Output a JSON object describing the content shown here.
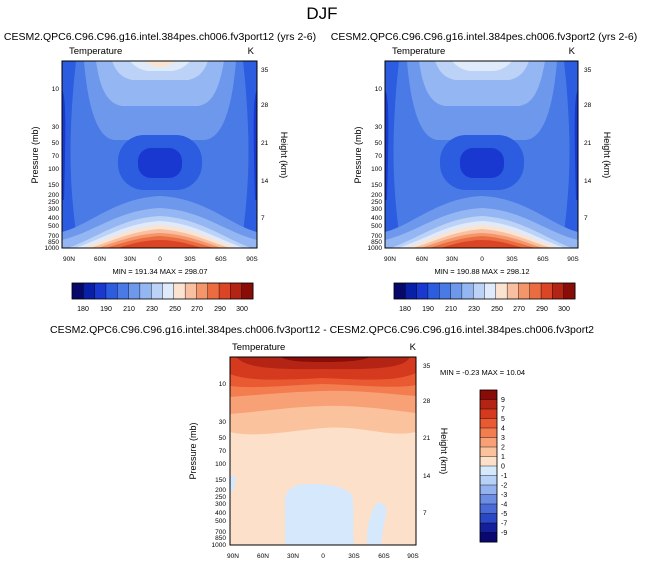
{
  "page_title": "DJF",
  "chart_data": [
    {
      "type": "contour",
      "title": "CESM2.QPC6.C96.C96.g16.intel.384pes.ch006.fv3port12 (yrs 2-6)",
      "variable_label": "Temperature",
      "units": "K",
      "xlabel": "",
      "ylabel": "Pressure (mb)",
      "ylabel_right": "Height (km)",
      "x_ticks": [
        "90N",
        "60N",
        "30N",
        "0",
        "30S",
        "60S",
        "90S"
      ],
      "y_ticks": [
        "10",
        "30",
        "50",
        "70",
        "100",
        "150",
        "200",
        "250",
        "300",
        "400",
        "500",
        "700",
        "850",
        "1000"
      ],
      "y2_ticks": [
        "35",
        "28",
        "21",
        "14",
        "7"
      ],
      "stats_text": "MIN = 191.34   MAX = 298.07",
      "min": 191.34,
      "max": 298.07,
      "colorbar_ticks": [
        "180",
        "190",
        "210",
        "230",
        "250",
        "270",
        "290",
        "300"
      ],
      "colorbar_levels": [
        180,
        185,
        190,
        200,
        210,
        220,
        230,
        240,
        250,
        260,
        270,
        280,
        290,
        295,
        300
      ]
    },
    {
      "type": "contour",
      "title": "CESM2.QPC6.C96.C96.g16.intel.384pes.ch006.fv3port2 (yrs 2-6)",
      "variable_label": "Temperature",
      "units": "K",
      "xlabel": "",
      "ylabel": "Pressure (mb)",
      "ylabel_right": "Height (km)",
      "x_ticks": [
        "90N",
        "60N",
        "30N",
        "0",
        "30S",
        "60S",
        "90S"
      ],
      "y_ticks": [
        "10",
        "30",
        "50",
        "70",
        "100",
        "150",
        "200",
        "250",
        "300",
        "400",
        "500",
        "700",
        "850",
        "1000"
      ],
      "y2_ticks": [
        "35",
        "28",
        "21",
        "14",
        "7"
      ],
      "stats_text": "MIN = 190.88   MAX = 298.12",
      "min": 190.88,
      "max": 298.12,
      "colorbar_ticks": [
        "180",
        "190",
        "210",
        "230",
        "250",
        "270",
        "290",
        "300"
      ],
      "colorbar_levels": [
        180,
        185,
        190,
        200,
        210,
        220,
        230,
        240,
        250,
        260,
        270,
        280,
        290,
        295,
        300
      ]
    },
    {
      "type": "contour",
      "title": "CESM2.QPC6.C96.C96.g16.intel.384pes.ch006.fv3port12 - CESM2.QPC6.C96.C96.g16.intel.384pes.ch006.fv3port2",
      "variable_label": "Temperature",
      "units": "K",
      "xlabel": "",
      "ylabel": "Pressure (mb)",
      "ylabel_right": "Height (km)",
      "x_ticks": [
        "90N",
        "60N",
        "30N",
        "0",
        "30S",
        "60S",
        "90S"
      ],
      "y_ticks": [
        "10",
        "30",
        "50",
        "70",
        "100",
        "150",
        "200",
        "250",
        "300",
        "400",
        "500",
        "700",
        "850",
        "1000"
      ],
      "y2_ticks": [
        "35",
        "28",
        "21",
        "14",
        "7"
      ],
      "stats_text": "MIN = -0.23   MAX = 10.04",
      "min": -0.23,
      "max": 10.04,
      "colorbar_ticks": [
        "9",
        "7",
        "5",
        "4",
        "3",
        "2",
        "1",
        "0",
        "-1",
        "-2",
        "-3",
        "-4",
        "-5",
        "-7",
        "-9"
      ]
    }
  ],
  "colors": {
    "temperature_scale": [
      "#08086a",
      "#0a1fa8",
      "#1838d0",
      "#2c5ce0",
      "#4a7ae6",
      "#6e98ec",
      "#94b6f2",
      "#bcd2f7",
      "#dfeafb",
      "#fbe3d1",
      "#f8c0a0",
      "#f4966a",
      "#ec6c42",
      "#dc4426",
      "#b42414",
      "#8a0c08"
    ],
    "difference_scale": [
      "#8a0c08",
      "#b42414",
      "#d63a1e",
      "#ea5a32",
      "#f37d4e",
      "#f8a176",
      "#fbc29e",
      "#fde0c9",
      "#d6e8fb",
      "#b7d1f7",
      "#93b2ef",
      "#6d8de4",
      "#4a6bd7",
      "#2a48c4",
      "#141f9a",
      "#080870"
    ]
  }
}
